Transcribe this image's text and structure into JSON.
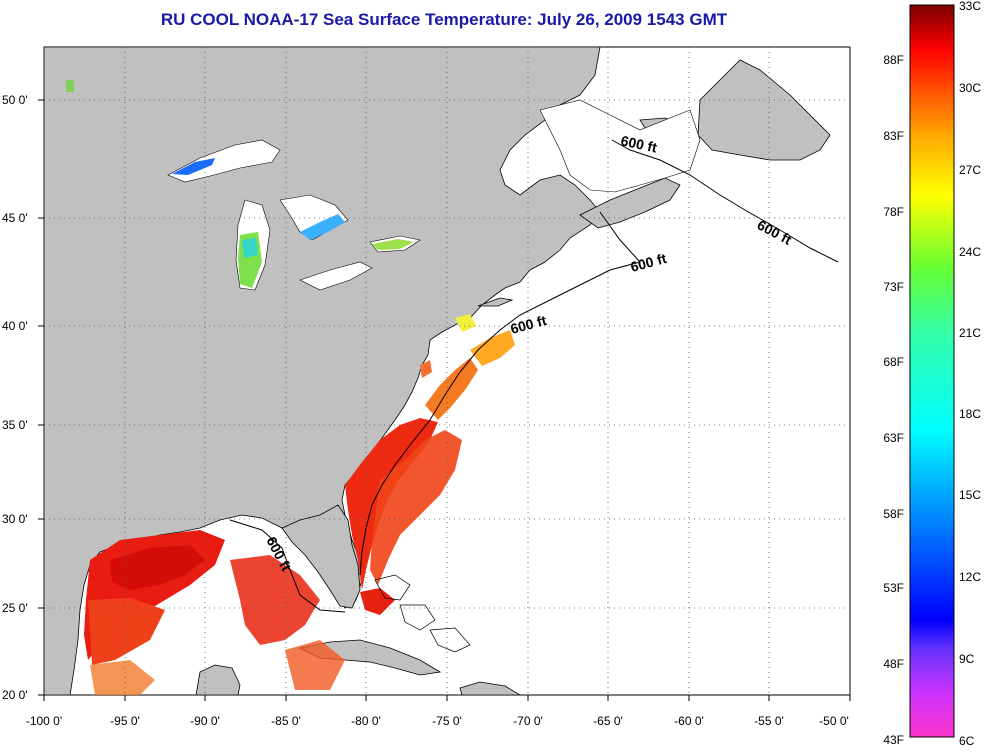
{
  "title": "RU COOL  NOAA-17  Sea Surface Temperature:  July 26, 2009 1543 GMT",
  "map": {
    "x_labels": [
      "-100 0'",
      "-95 0'",
      "-90 0'",
      "-85 0'",
      "-80 0'",
      "-75 0'",
      "-70 0'",
      "-65 0'",
      "-60 0'",
      "-55 0'",
      "-50 0'"
    ],
    "y_labels": [
      "50 0'",
      "45 0'",
      "40 0'",
      "35 0'",
      "30 0'",
      "25 0'",
      "20 0'"
    ],
    "contour_labels": [
      "600 ft",
      "600 ft",
      "600 ft",
      "600 ft",
      "600 ft"
    ],
    "land_color": "#c0c0c0",
    "ocean_color": "#ffffff"
  },
  "colorbar": {
    "fahrenheit": [
      "88F",
      "83F",
      "78F",
      "73F",
      "68F",
      "63F",
      "58F",
      "53F",
      "48F",
      "43F"
    ],
    "celsius": [
      "33C",
      "30C",
      "27C",
      "24C",
      "21C",
      "18C",
      "15C",
      "12C",
      "9C",
      "6C"
    ]
  }
}
